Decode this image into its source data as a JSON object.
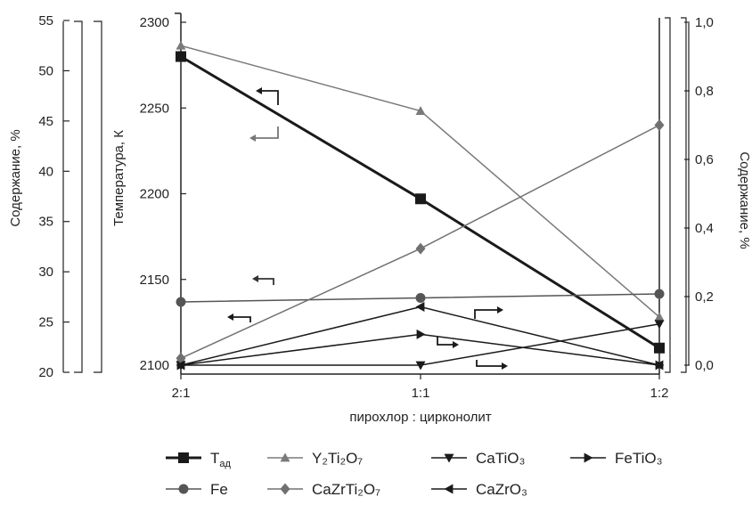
{
  "chart_data": {
    "type": "line",
    "categories": [
      "2:1",
      "1:1",
      "1:2"
    ],
    "xlabel": "пирохлор : цирконолит",
    "axes": {
      "temperature": {
        "label": "Температура, К",
        "min": 2080,
        "max": 2300,
        "ticks": [
          "2100",
          "2150",
          "2200",
          "2250",
          "2300"
        ]
      },
      "content_left": {
        "label": "Содержание, %",
        "min": 20,
        "max": 55,
        "ticks": [
          "20",
          "25",
          "30",
          "35",
          "40",
          "45",
          "50",
          "55"
        ]
      },
      "content_right": {
        "label": "Содержание, %",
        "min": 0,
        "max": 1.0,
        "ticks": [
          "0,0",
          "0,2",
          "0,4",
          "0,6",
          "0,8",
          "1,0"
        ]
      }
    },
    "series": [
      {
        "name": "T",
        "name_sub": "ад",
        "axis": "temperature",
        "marker": "square",
        "color": "#1a1a1a",
        "width": 3,
        "values": [
          2280,
          2197,
          2110
        ]
      },
      {
        "name": "Y₂Ti₂O₇",
        "axis": "content_left",
        "marker": "triangle-up",
        "color": "#7a7a7a",
        "width": 1.5,
        "values": [
          52.5,
          46.0,
          25.5
        ]
      },
      {
        "name": "CaTiO₃",
        "axis": "content_right",
        "marker": "triangle-down",
        "color": "#1a1a1a",
        "width": 1.5,
        "values": [
          0.0,
          0.0,
          0.12
        ]
      },
      {
        "name": "FeTiO₃",
        "axis": "content_right",
        "marker": "triangle-right",
        "color": "#1a1a1a",
        "width": 1.5,
        "values": [
          0.0,
          0.09,
          0.0
        ]
      },
      {
        "name": "Fe",
        "axis": "content_left",
        "marker": "circle",
        "color": "#555555",
        "width": 1.5,
        "values": [
          27.0,
          27.4,
          27.8
        ]
      },
      {
        "name": "CaZrTi₂O₇",
        "axis": "content_right",
        "marker": "diamond",
        "color": "#707070",
        "width": 1.5,
        "values": [
          0.02,
          0.34,
          0.7
        ]
      },
      {
        "name": "CaZrO₃",
        "axis": "content_right",
        "marker": "triangle-left",
        "color": "#1a1a1a",
        "width": 1.5,
        "values": [
          0.0,
          0.17,
          0.0
        ]
      }
    ],
    "legend": {
      "placement": "bottom",
      "rows": [
        [
          {
            "text": "T",
            "sub": "ад",
            "marker": "square",
            "color": "#1a1a1a",
            "width": 3
          },
          {
            "text": "Y₂Ti₂O₇",
            "marker": "triangle-up",
            "color": "#7a7a7a",
            "width": 1.5
          },
          {
            "text": "CaTiO₃",
            "marker": "triangle-down",
            "color": "#1a1a1a",
            "width": 1.5
          },
          {
            "text": "FeTiO₃",
            "marker": "triangle-right",
            "color": "#1a1a1a",
            "width": 1.5
          }
        ],
        [
          {
            "text": "Fe",
            "marker": "circle",
            "color": "#555555",
            "width": 1.5
          },
          {
            "text": "CaZrTi₂O₇",
            "marker": "diamond",
            "color": "#707070",
            "width": 1.5
          },
          {
            "text": "CaZrO₃",
            "marker": "triangle-left",
            "color": "#1a1a1a",
            "width": 1.5
          }
        ]
      ]
    },
    "grid": false
  }
}
